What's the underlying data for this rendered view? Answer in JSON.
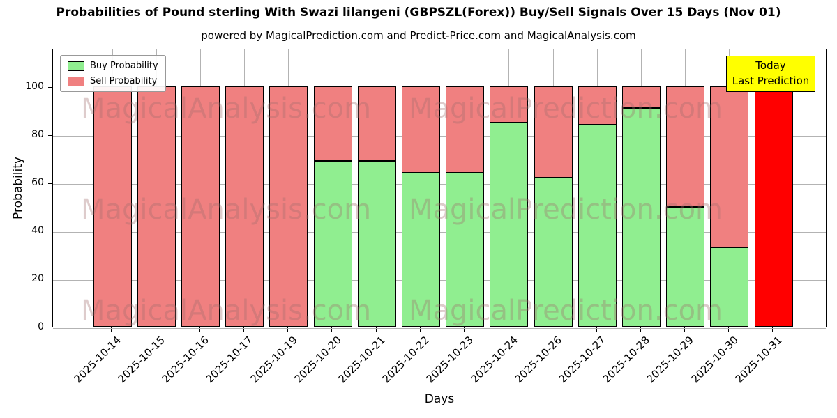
{
  "chart_data": {
    "type": "bar",
    "stacked": true,
    "title": "Probabilities of Pound sterling With Swazi lilangeni (GBPSZL(Forex)) Buy/Sell Signals Over 15 Days (Nov 01)",
    "subtitle": "powered by MagicalPrediction.com and Predict-Price.com and MagicalAnalysis.com",
    "xlabel": "Days",
    "ylabel": "Probability",
    "ylim": [
      0,
      116
    ],
    "yticks": [
      0,
      20,
      40,
      60,
      80,
      100
    ],
    "grid": true,
    "dashed_guide_y": 111,
    "legend_position": "upper left",
    "categories": [
      "2025-10-14",
      "2025-10-15",
      "2025-10-16",
      "2025-10-17",
      "2025-10-19",
      "2025-10-20",
      "2025-10-21",
      "2025-10-22",
      "2025-10-23",
      "2025-10-24",
      "2025-10-26",
      "2025-10-27",
      "2025-10-28",
      "2025-10-29",
      "2025-10-30",
      "2025-10-31"
    ],
    "series": [
      {
        "name": "Buy Probability",
        "color": "#90ee90",
        "values": [
          0,
          0,
          0,
          0,
          0,
          69,
          69,
          64,
          64,
          85,
          62,
          84,
          91,
          50,
          33,
          0
        ]
      },
      {
        "name": "Sell Probability",
        "color": "#f08080",
        "values": [
          100,
          100,
          100,
          100,
          100,
          31,
          31,
          36,
          36,
          15,
          38,
          16,
          9,
          50,
          67,
          100
        ]
      }
    ],
    "today_bar": {
      "category": "2025-10-31",
      "color": "#ff0000"
    },
    "annotation": {
      "line1": "Today",
      "line2": "Last Prediction",
      "bg_color": "#ffff00"
    },
    "watermark_texts": [
      "MagicalAnalysis.com",
      "MagicalPrediction.com"
    ]
  }
}
